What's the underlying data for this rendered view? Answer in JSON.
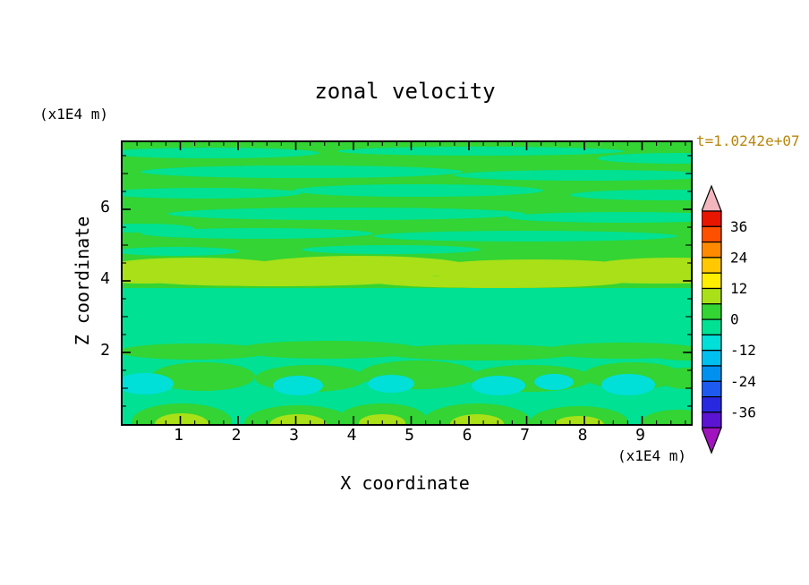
{
  "title": "zonal velocity",
  "timestamp": "t=1.0242e+07",
  "colors": {
    "timestamp": "#B8860B",
    "frame": "#000000",
    "background": "#ffffff"
  },
  "axes": {
    "x": {
      "label": "X coordinate",
      "unit": "(x1E4 m)",
      "ticks": [
        "1",
        "2",
        "3",
        "4",
        "5",
        "6",
        "7",
        "8",
        "9"
      ]
    },
    "z": {
      "label": "Z coordinate",
      "unit": "(x1E4 m)",
      "ticks": [
        "6",
        "4",
        "2"
      ]
    }
  },
  "colorbar": {
    "labels": [
      "36",
      "24",
      "12",
      "0",
      "-12",
      "-24",
      "-36"
    ],
    "orientation": "vertical",
    "position": "right",
    "arrow_ends": true
  },
  "chart_data": {
    "type": "heatmap",
    "title": "zonal velocity",
    "xlabel": "X coordinate (x1E4 m)",
    "ylabel": "Z coordinate (x1E4 m)",
    "annotation": "t=1.0242e+07",
    "xlim": [
      0,
      9.85
    ],
    "ylim": [
      0,
      7.875
    ],
    "contour_interval": 6,
    "levels": [
      -42,
      -36,
      -30,
      -24,
      -18,
      -12,
      -6,
      0,
      6,
      12,
      18,
      24,
      30,
      36,
      42
    ],
    "level_colors": [
      "#A014BE",
      "#5A14D2",
      "#2828E0",
      "#1E5AF0",
      "#0090F0",
      "#00C0F0",
      "#00DFD8",
      "#00E193",
      "#33D433",
      "#A9E017",
      "#FFEE00",
      "#FFC800",
      "#FF8A00",
      "#FF5000",
      "#E81500",
      "#F2B6BE"
    ],
    "legend_position": "right",
    "grid": false,
    "values_are_estimates": true,
    "x": [
      0.5,
      1.5,
      2.5,
      3.5,
      4.5,
      5.5,
      6.5,
      7.5,
      8.5,
      9.5
    ],
    "z": [
      0.5,
      1.0,
      1.5,
      2.0,
      2.5,
      3.0,
      3.5,
      4.0,
      4.5,
      5.0,
      5.5,
      6.0,
      6.5,
      7.0,
      7.5
    ],
    "values": [
      [
        9,
        -3,
        9,
        3,
        9,
        9,
        -3,
        9,
        9,
        -3
      ],
      [
        -9,
        3,
        3,
        -9,
        3,
        -9,
        3,
        3,
        -9,
        3
      ],
      [
        3,
        3,
        -3,
        3,
        -3,
        3,
        -3,
        3,
        3,
        -3
      ],
      [
        3,
        -3,
        3,
        3,
        -3,
        3,
        3,
        -3,
        3,
        3
      ],
      [
        -3,
        -3,
        -3,
        -3,
        -3,
        -3,
        -3,
        -3,
        -3,
        -3
      ],
      [
        -3,
        -3,
        -3,
        -3,
        -3,
        -3,
        -3,
        -3,
        -3,
        -3
      ],
      [
        -3,
        -3,
        -3,
        -3,
        -3,
        -3,
        -3,
        -3,
        -3,
        -3
      ],
      [
        3,
        9,
        9,
        3,
        9,
        9,
        3,
        9,
        9,
        3
      ],
      [
        9,
        9,
        3,
        9,
        9,
        9,
        9,
        3,
        9,
        9
      ],
      [
        3,
        3,
        3,
        -3,
        3,
        3,
        3,
        -3,
        3,
        3
      ],
      [
        -3,
        3,
        -3,
        3,
        3,
        -3,
        3,
        3,
        -3,
        3
      ],
      [
        3,
        -3,
        3,
        3,
        -3,
        3,
        -3,
        3,
        3,
        -3
      ],
      [
        3,
        3,
        -3,
        3,
        3,
        3,
        -3,
        3,
        -3,
        3
      ],
      [
        -3,
        3,
        3,
        -3,
        3,
        -3,
        3,
        3,
        3,
        -3
      ],
      [
        3,
        -3,
        3,
        3,
        -3,
        3,
        3,
        -3,
        3,
        3
      ]
    ],
    "bands_description": [
      {
        "z_range": [
          4.7,
          7.875
        ],
        "value_range": [
          -6,
          6
        ],
        "note": "streaky horizontal mix of -6..0 and 0..6"
      },
      {
        "z_range": [
          3.9,
          4.7
        ],
        "value_range": [
          6,
          12
        ],
        "note": "yellow-green band"
      },
      {
        "z_range": [
          2.2,
          3.9
        ],
        "value_range": [
          -6,
          0
        ],
        "note": "uniform layer"
      },
      {
        "z_range": [
          0,
          2.2
        ],
        "value_range": [
          -12,
          12
        ],
        "note": "cellular blobs, cyan minima and yellow-green maxima near bottom"
      }
    ]
  }
}
